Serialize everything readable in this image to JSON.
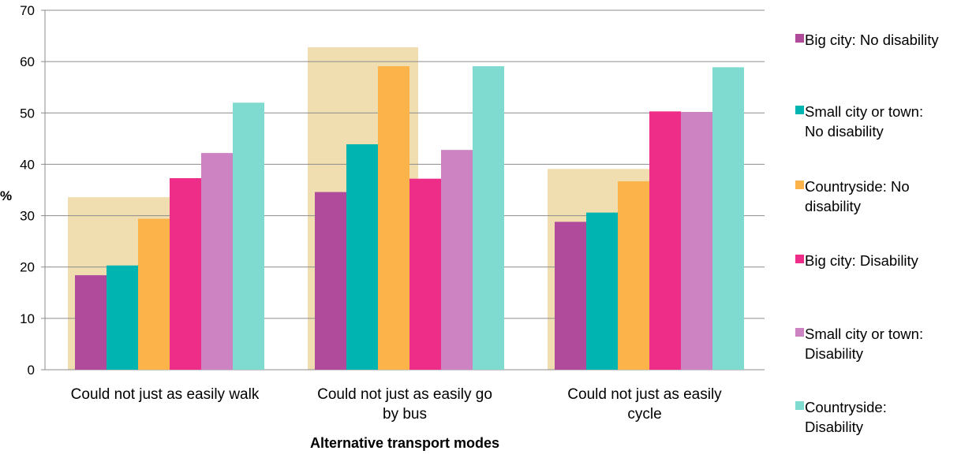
{
  "chart_data": {
    "type": "bar",
    "title": "",
    "xlabel": "Alternative transport modes",
    "ylabel": "%",
    "ylim": [
      0,
      70
    ],
    "yticks": [
      0,
      10,
      20,
      30,
      40,
      50,
      60,
      70
    ],
    "grid": true,
    "legend_position": "right",
    "categories": [
      [
        "Could not just as easily walk"
      ],
      [
        "Could not just as easily go",
        "by bus"
      ],
      [
        "Could not just as easily",
        "cycle"
      ]
    ],
    "highlight_values": [
      33.6,
      62.8,
      39.1
    ],
    "highlight_color": "#f0deb0",
    "series": [
      {
        "name": [
          "Big city: No disability"
        ],
        "color": "#b04a9b",
        "values": [
          18.4,
          34.6,
          28.8
        ]
      },
      {
        "name": [
          "Small city or town:",
          "No disability"
        ],
        "color": "#00b5b1",
        "values": [
          20.3,
          43.9,
          30.6
        ]
      },
      {
        "name": [
          "Countryside: No",
          "disability"
        ],
        "color": "#fbb34a",
        "values": [
          29.4,
          59.1,
          36.7
        ]
      },
      {
        "name": [
          "Big city: Disability"
        ],
        "color": "#ed2d87",
        "values": [
          37.3,
          37.2,
          50.3
        ]
      },
      {
        "name": [
          "Small city or town:",
          "Disability"
        ],
        "color": "#cd82c2",
        "values": [
          42.2,
          42.8,
          50.2
        ]
      },
      {
        "name": [
          "Countryside:",
          "Disability"
        ],
        "color": "#7fdad0",
        "values": [
          52.0,
          59.1,
          58.9
        ]
      }
    ]
  }
}
